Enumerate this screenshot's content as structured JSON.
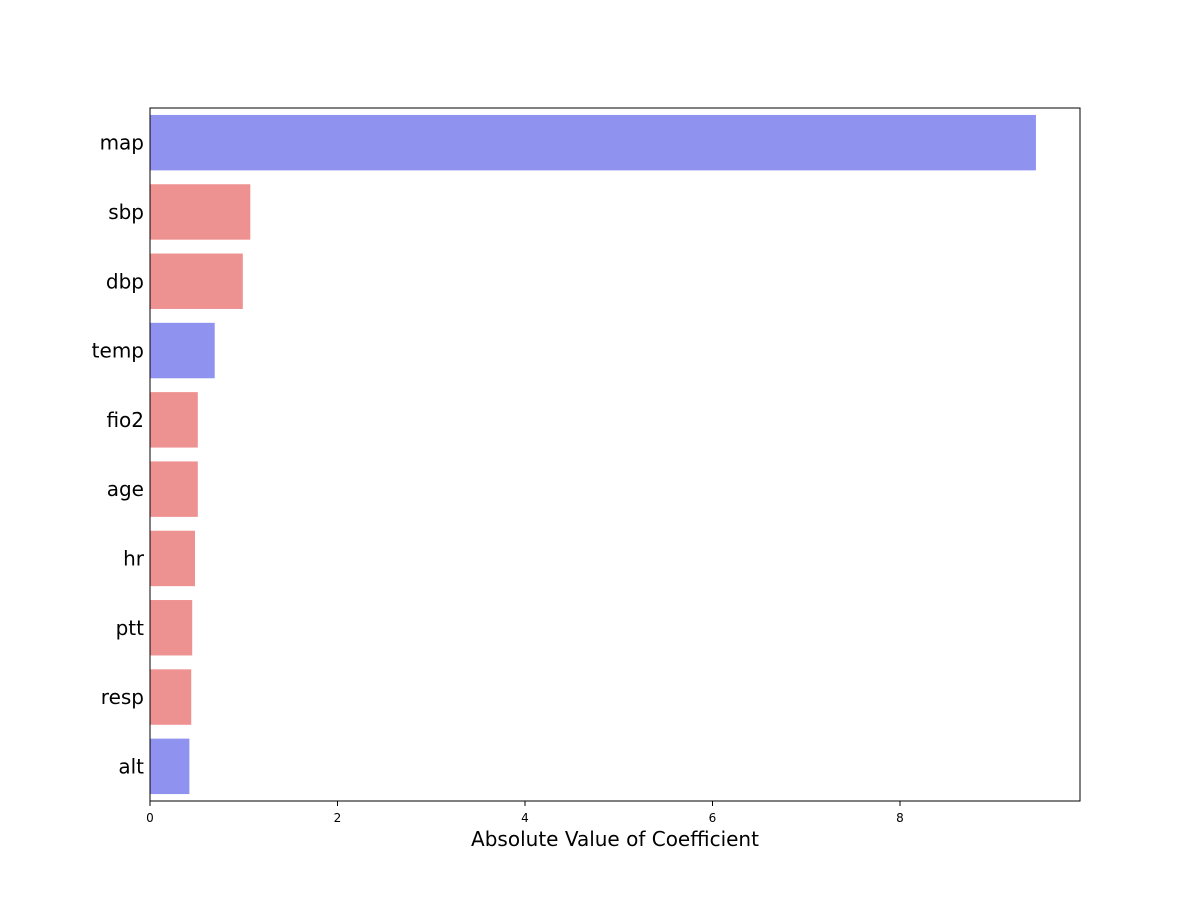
{
  "chart_data": {
    "type": "bar",
    "orientation": "horizontal",
    "title": "",
    "xlabel": "Absolute Value of Coefficient",
    "ylabel": "",
    "xlim": [
      0,
      9.92
    ],
    "xticks": [
      0,
      2,
      4,
      6,
      8
    ],
    "grid": false,
    "categories": [
      "map",
      "sbp",
      "dbp",
      "temp",
      "fio2",
      "age",
      "hr",
      "ptt",
      "resp",
      "alt"
    ],
    "values": [
      9.45,
      1.07,
      0.99,
      0.69,
      0.51,
      0.51,
      0.48,
      0.45,
      0.44,
      0.42
    ],
    "colors": [
      "#8f92ee",
      "#ee9191",
      "#ee9191",
      "#8f92ee",
      "#ee9191",
      "#ee9191",
      "#ee9191",
      "#ee9191",
      "#ee9191",
      "#8f92ee"
    ]
  }
}
